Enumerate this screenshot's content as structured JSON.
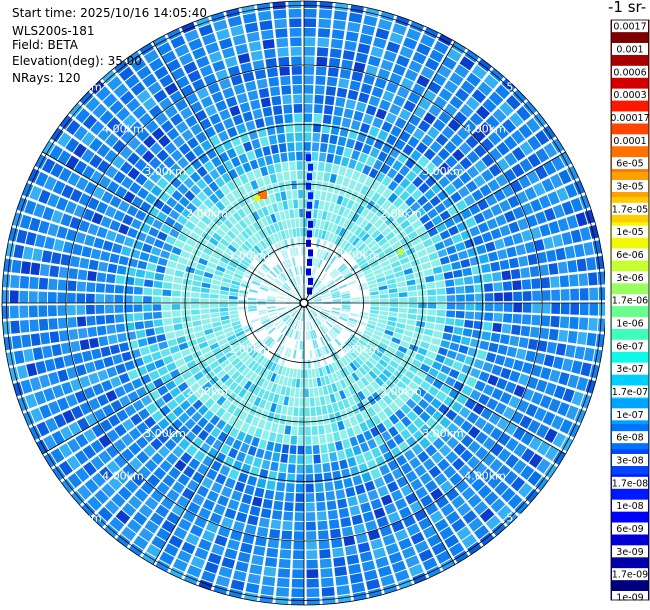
{
  "info": {
    "start_time": "Start time: 2025/10/16 14:05:40",
    "instrument": "WLS200s-181",
    "field": "Field: BETA",
    "elevation": "Elevation(deg): 35.00",
    "nrays": "NRays: 120"
  },
  "colorbar_title": "-1 sr-",
  "chart_data": {
    "type": "heatmap",
    "projection": "polar",
    "rings_km": [
      1,
      2,
      3,
      4,
      5
    ],
    "ring_labels": [
      "1.00km",
      "2.00km",
      "3.00km",
      "4.00km",
      "5.00km"
    ],
    "max_range_km": 7.2,
    "spokes_deg": [
      0,
      30,
      60,
      90,
      120,
      150,
      180,
      210,
      240,
      270,
      300,
      330
    ],
    "colorbar": {
      "colors": [
        "#00007f",
        "#0000a8",
        "#0000d6",
        "#0000ff",
        "#0018ff",
        "#0046ff",
        "#0074ff",
        "#00a2ff",
        "#00ceff",
        "#0ff8e8",
        "#3dffba",
        "#6aff8d",
        "#98ff5f",
        "#c6ff31",
        "#f4f802",
        "#ffcc00",
        "#ff9f00",
        "#ff7200",
        "#ff4500",
        "#ff1800",
        "#d40000",
        "#a80000",
        "#7f0000"
      ],
      "labels": [
        "1e-09",
        "1.7e-09",
        "3e-09",
        "6e-09",
        "1e-08",
        "1.7e-08",
        "3e-08",
        "6e-08",
        "1e-07",
        "1.7e-07",
        "3e-07",
        "6e-07",
        "1e-06",
        "1.7e-06",
        "3e-06",
        "6e-06",
        "1e-05",
        "1.7e-05",
        "3e-05",
        "6e-05",
        "0.0001",
        "0.00017",
        "0.0003",
        "0.0006",
        "0.001",
        "0.0017"
      ]
    }
  }
}
